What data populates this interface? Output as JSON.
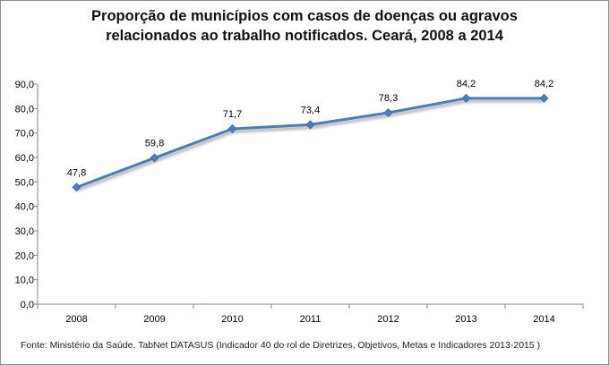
{
  "chart_data": {
    "type": "line",
    "title_lines": [
      "Proporção de municípios com casos de doenças ou agravos",
      "relacionados ao trabalho notificados. Ceará, 2008 a 2014"
    ],
    "categories": [
      "2008",
      "2009",
      "2010",
      "2011",
      "2012",
      "2013",
      "2014"
    ],
    "series": [
      {
        "name": "Proporção de municípios",
        "values": [
          47.8,
          59.8,
          71.7,
          73.4,
          78.3,
          84.2,
          84.2
        ],
        "labels": [
          "47,8",
          "59,8",
          "71,7",
          "73,4",
          "78,3",
          "84,2",
          "84,2"
        ],
        "color": "#4a7ebb"
      }
    ],
    "ylim": [
      0,
      90
    ],
    "yticks": [
      0,
      10,
      20,
      30,
      40,
      50,
      60,
      70,
      80,
      90
    ],
    "ytick_labels": [
      "0,0",
      "10,0",
      "20,0",
      "30,0",
      "40,0",
      "50,0",
      "60,0",
      "70,0",
      "80,0",
      "90,0"
    ],
    "xlabel": "",
    "ylabel": "",
    "grid": false,
    "legend": "none",
    "source": "Fonte: Ministério da Saúde. TabNet DATASUS (Indicador 40 do rol de Diretrizes, Objetivos, Metas e Indicadores 2013-2015 )"
  }
}
